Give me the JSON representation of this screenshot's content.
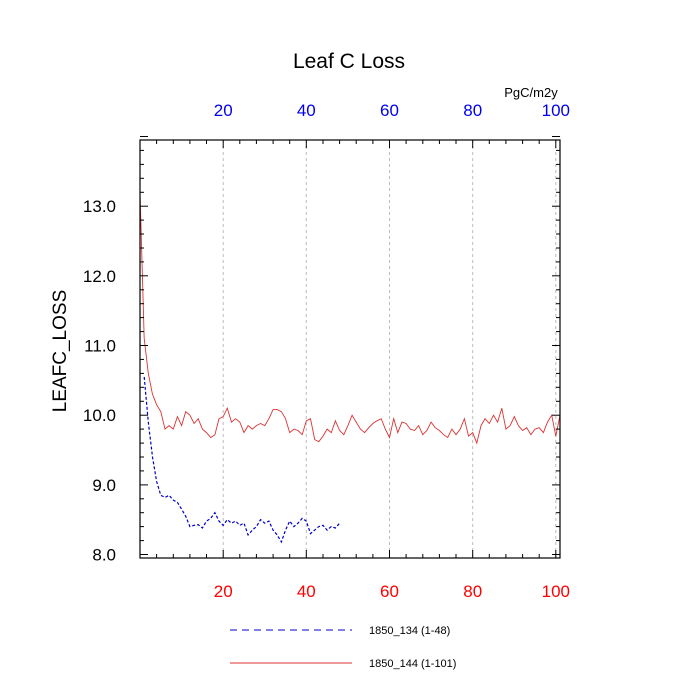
{
  "chart_data": {
    "type": "line",
    "title": "Leaf C Loss",
    "ylabel": "LEAFC_LOSS",
    "units": "PgC/m2y",
    "xlim": [
      0,
      101
    ],
    "ylim": [
      7.95,
      13.95
    ],
    "x_ticks": [
      20,
      40,
      60,
      80,
      100
    ],
    "y_ticks": [
      8.0,
      9.0,
      10.0,
      11.0,
      12.0,
      13.0
    ],
    "y_tick_labels": [
      "8.0",
      "9.0",
      "10.0",
      "11.0",
      "12.0",
      "13.0"
    ],
    "grid": "vertical dashed",
    "legend_position": "bottom",
    "series": [
      {
        "name": "1850_134 (1-48)",
        "color": "#0000cc",
        "style": "dashed",
        "x": [
          1,
          2,
          3,
          4,
          5,
          6,
          7,
          8,
          9,
          10,
          11,
          12,
          13,
          14,
          15,
          16,
          17,
          18,
          19,
          20,
          21,
          22,
          23,
          24,
          25,
          26,
          27,
          28,
          29,
          30,
          31,
          32,
          33,
          34,
          35,
          36,
          37,
          38,
          39,
          40,
          41,
          42,
          43,
          44,
          45,
          46,
          47,
          48
        ],
        "values": [
          10.55,
          9.9,
          9.4,
          9.05,
          8.85,
          8.82,
          8.85,
          8.78,
          8.75,
          8.65,
          8.55,
          8.4,
          8.42,
          8.43,
          8.38,
          8.48,
          8.52,
          8.6,
          8.48,
          8.42,
          8.5,
          8.45,
          8.48,
          8.42,
          8.45,
          8.28,
          8.35,
          8.4,
          8.5,
          8.45,
          8.48,
          8.35,
          8.28,
          8.18,
          8.35,
          8.48,
          8.4,
          8.45,
          8.52,
          8.48,
          8.3,
          8.35,
          8.4,
          8.42,
          8.35,
          8.4,
          8.38,
          8.45
        ]
      },
      {
        "name": "1850_144 (1-101)",
        "color": "#dd3333",
        "style": "solid",
        "x": [
          0,
          1,
          2,
          3,
          4,
          5,
          6,
          7,
          8,
          9,
          10,
          11,
          12,
          13,
          14,
          15,
          16,
          17,
          18,
          19,
          20,
          21,
          22,
          23,
          24,
          25,
          26,
          27,
          28,
          29,
          30,
          31,
          32,
          33,
          34,
          35,
          36,
          37,
          38,
          39,
          40,
          41,
          42,
          43,
          44,
          45,
          46,
          47,
          48,
          49,
          50,
          51,
          52,
          53,
          54,
          55,
          56,
          57,
          58,
          59,
          60,
          61,
          62,
          63,
          64,
          65,
          66,
          67,
          68,
          69,
          70,
          71,
          72,
          73,
          74,
          75,
          76,
          77,
          78,
          79,
          80,
          81,
          82,
          83,
          84,
          85,
          86,
          87,
          88,
          89,
          90,
          91,
          92,
          93,
          94,
          95,
          96,
          97,
          98,
          99,
          100,
          101
        ],
        "values": [
          13.2,
          11.1,
          10.6,
          10.3,
          10.15,
          10.05,
          9.8,
          9.85,
          9.8,
          9.98,
          9.85,
          10.05,
          10.0,
          9.88,
          9.95,
          9.8,
          9.75,
          9.68,
          9.72,
          9.95,
          9.98,
          10.1,
          9.9,
          9.95,
          9.9,
          9.75,
          9.85,
          9.8,
          9.85,
          9.88,
          9.85,
          9.95,
          10.08,
          10.08,
          10.05,
          9.95,
          9.75,
          9.8,
          9.78,
          9.72,
          9.92,
          9.95,
          9.65,
          9.62,
          9.7,
          9.8,
          9.75,
          9.92,
          9.78,
          9.72,
          9.85,
          10.0,
          9.9,
          9.8,
          9.75,
          9.82,
          9.88,
          9.92,
          9.95,
          9.8,
          9.68,
          9.95,
          9.75,
          9.9,
          9.88,
          9.8,
          9.78,
          9.85,
          9.72,
          9.78,
          9.9,
          9.82,
          9.78,
          9.72,
          9.68,
          9.8,
          9.72,
          9.8,
          9.95,
          9.7,
          9.75,
          9.6,
          9.85,
          9.95,
          9.88,
          10.0,
          9.9,
          10.1,
          9.8,
          9.85,
          9.98,
          9.85,
          9.78,
          9.82,
          9.72,
          9.8,
          9.82,
          9.75,
          9.9,
          10.0,
          9.7,
          10.0
        ]
      }
    ]
  }
}
